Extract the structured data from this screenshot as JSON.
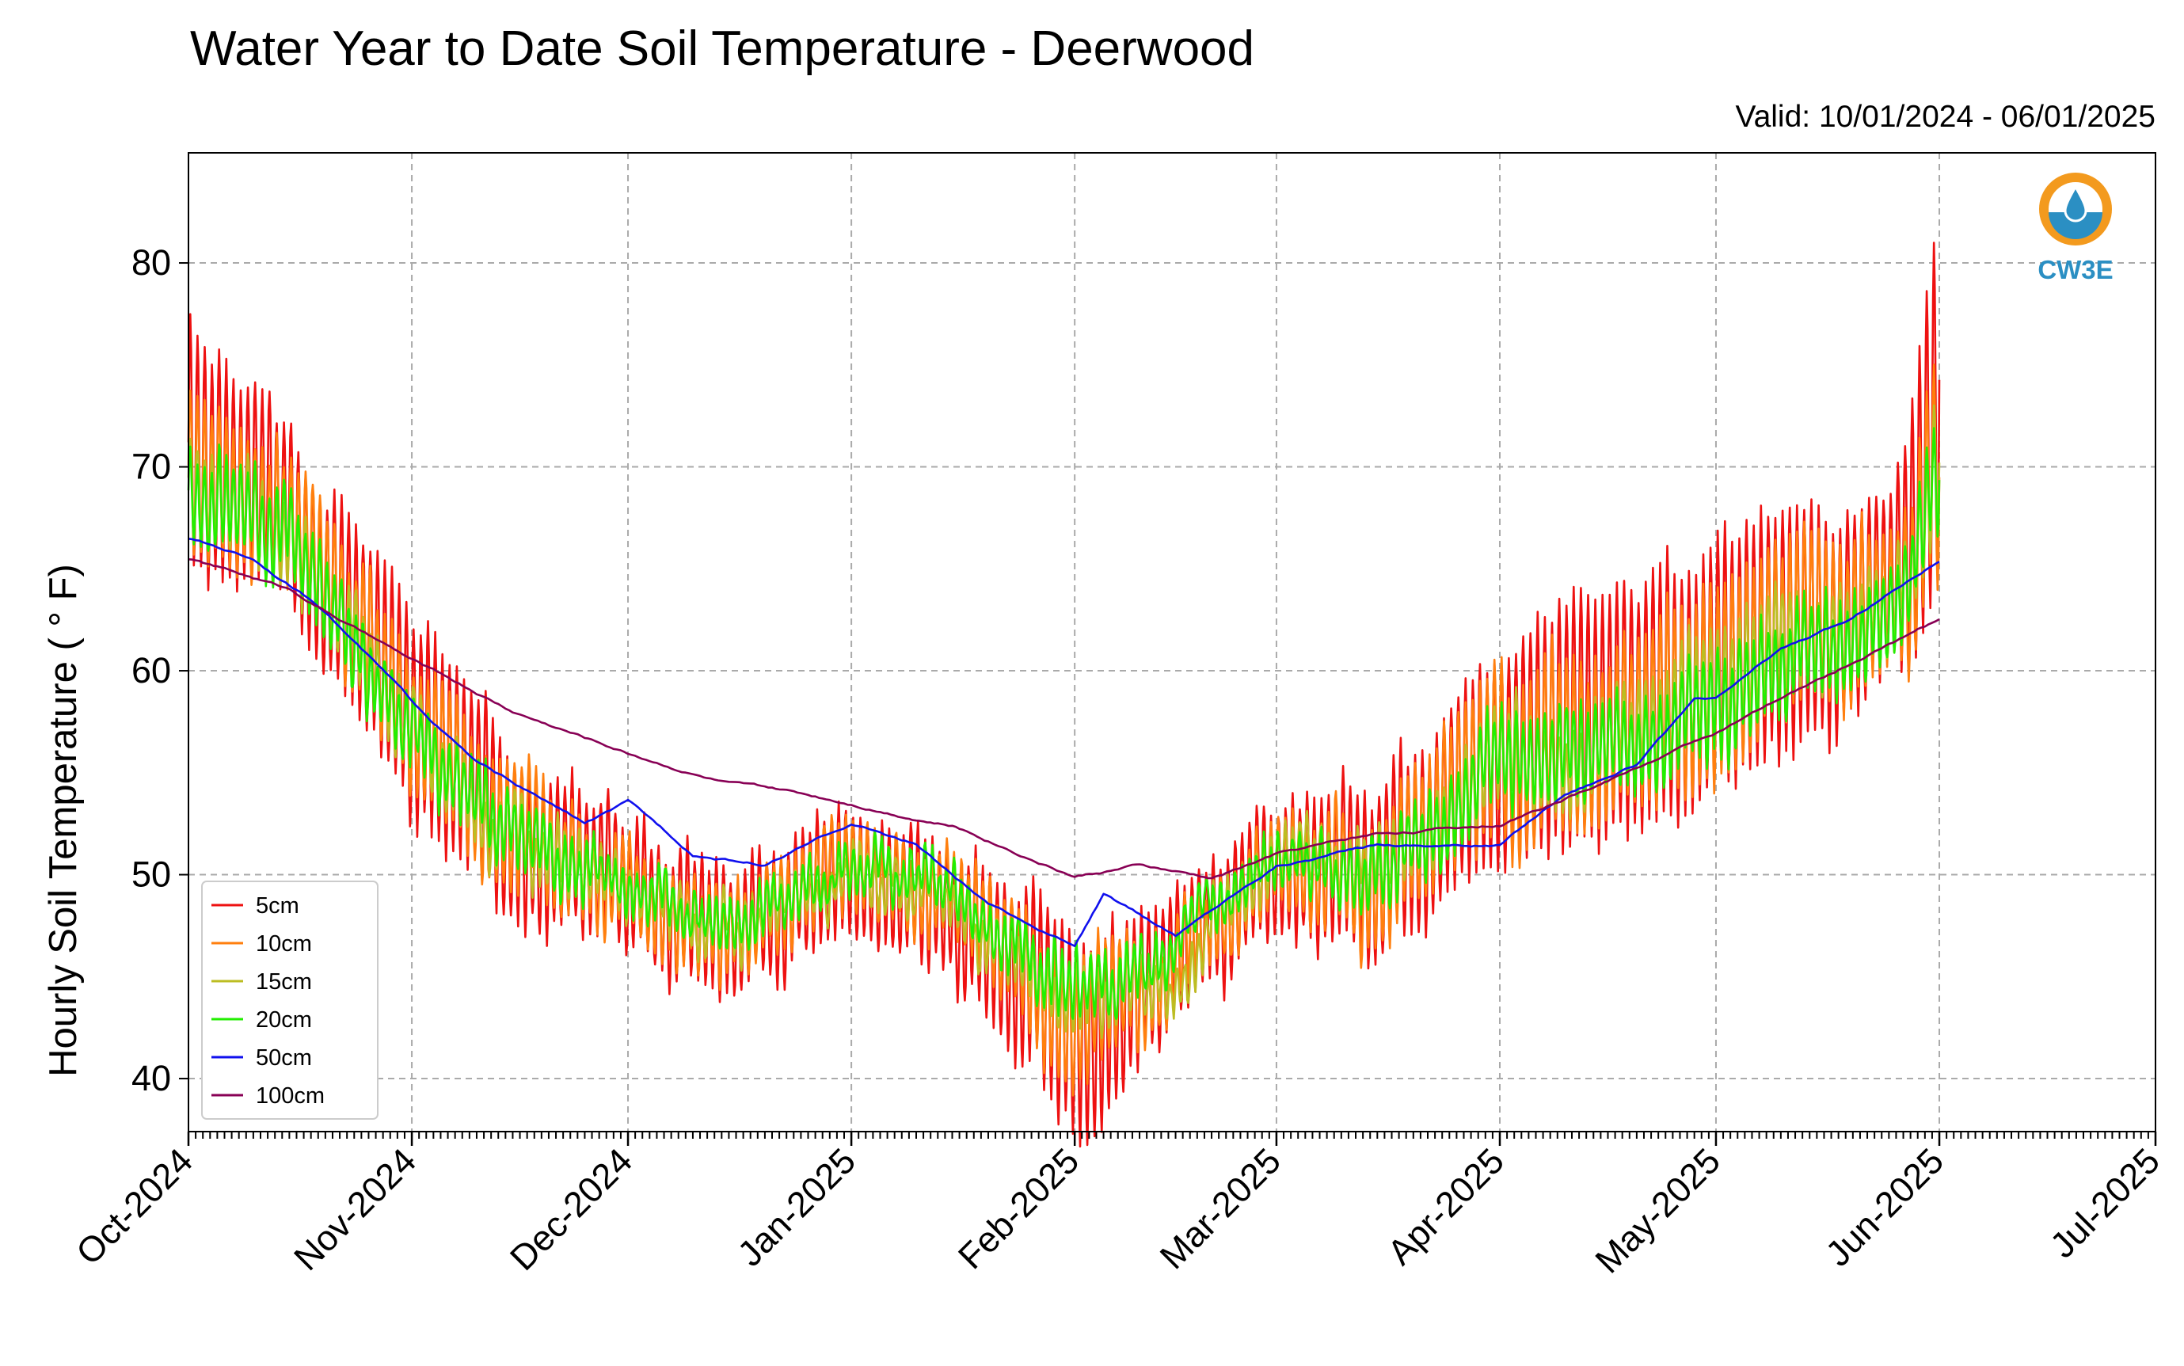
{
  "chart_data": {
    "type": "line",
    "title": "Water Year to Date Soil Temperature - Deerwood",
    "subtitle": "Valid: 10/01/2024 - 06/01/2025",
    "ylabel": "Hourly Soil Temperature ( ° F)",
    "xlabel": "",
    "ylim": [
      37.4,
      85.4
    ],
    "xlim": [
      "2024-10-01",
      "2025-07-01"
    ],
    "yticks": [
      40,
      50,
      60,
      70,
      80
    ],
    "xtick_labels": [
      "Oct-2024",
      "Nov-2024",
      "Dec-2024",
      "Jan-2025",
      "Feb-2025",
      "Mar-2025",
      "Apr-2025",
      "May-2025",
      "Jun-2025",
      "Jul-2025"
    ],
    "xtick_dates": [
      "2024-10-01",
      "2024-11-01",
      "2024-12-01",
      "2025-01-01",
      "2025-02-01",
      "2025-03-01",
      "2025-04-01",
      "2025-05-01",
      "2025-06-01",
      "2025-07-01"
    ],
    "grid": true,
    "legend_position": "lower-left",
    "logo_text": "CW3E",
    "series": [
      {
        "name": "5cm",
        "color": "#ee1111",
        "daily_amplitude_f": [
          6,
          4,
          5,
          4,
          3,
          3,
          3,
          3,
          5,
          3,
          3,
          4,
          5,
          6,
          6,
          6,
          6,
          5,
          4,
          6,
          9,
          9
        ],
        "x": [
          "2024-10-01",
          "2024-10-15",
          "2024-11-01",
          "2024-11-15",
          "2024-12-01",
          "2024-12-15",
          "2025-01-01",
          "2025-01-15",
          "2025-02-01",
          "2025-02-15",
          "2025-03-01",
          "2025-03-15",
          "2025-04-01",
          "2025-04-10",
          "2025-04-20",
          "2025-05-01",
          "2025-05-10",
          "2025-05-20",
          "2025-05-25",
          "2025-05-28",
          "2025-05-31",
          "2025-06-01"
        ],
        "y": [
          71,
          68,
          58,
          52,
          49,
          47,
          50,
          48,
          42,
          45,
          51,
          50,
          56,
          57,
          58,
          60,
          62,
          63,
          64,
          66,
          72,
          74
        ]
      },
      {
        "name": "10cm",
        "color": "#ff7f0e",
        "daily_amplitude_f": [
          4,
          3,
          3,
          3,
          2,
          2,
          2,
          2,
          3,
          2,
          2,
          3,
          4,
          4,
          4,
          5,
          4,
          4,
          3,
          4,
          5,
          6
        ],
        "x": [
          "2024-10-01",
          "2024-10-15",
          "2024-11-01",
          "2024-11-15",
          "2024-12-01",
          "2024-12-15",
          "2025-01-01",
          "2025-01-15",
          "2025-02-01",
          "2025-02-15",
          "2025-03-01",
          "2025-03-15",
          "2025-04-01",
          "2025-04-10",
          "2025-04-20",
          "2025-05-01",
          "2025-05-10",
          "2025-05-20",
          "2025-05-25",
          "2025-05-28",
          "2025-05-31",
          "2025-06-01"
        ],
        "y": [
          70,
          67.5,
          57.5,
          52,
          49,
          47.5,
          50.5,
          48.5,
          43,
          45.5,
          51,
          50,
          56,
          56.5,
          57.5,
          59.5,
          61.5,
          62.5,
          63.5,
          65,
          70,
          71
        ]
      },
      {
        "name": "15cm",
        "color": "#bcbd22",
        "daily_amplitude_f": [
          2,
          2,
          1.5,
          1.5,
          1,
          1,
          1,
          1,
          1.5,
          1,
          1,
          1.5,
          2,
          2,
          2,
          3,
          2,
          2,
          2,
          2,
          3,
          3
        ],
        "x": [
          "2024-10-01",
          "2024-10-15",
          "2024-11-01",
          "2024-11-15",
          "2024-12-01",
          "2024-12-15",
          "2025-01-01",
          "2025-01-15",
          "2025-02-01",
          "2025-02-15",
          "2025-03-01",
          "2025-03-15",
          "2025-04-01",
          "2025-04-10",
          "2025-04-20",
          "2025-05-01",
          "2025-05-10",
          "2025-05-20",
          "2025-05-25",
          "2025-05-28",
          "2025-05-31",
          "2025-06-01"
        ],
        "y": [
          69.5,
          67,
          57,
          52,
          49,
          47.5,
          50.5,
          48.5,
          43.5,
          45.5,
          51,
          50,
          55.5,
          56,
          57,
          59,
          61,
          62,
          63,
          64.5,
          69,
          70
        ]
      },
      {
        "name": "20cm",
        "color": "#22ee00",
        "daily_amplitude_f": [
          2,
          2,
          1.5,
          1.5,
          1,
          1,
          1,
          1,
          1.5,
          1,
          1,
          1.5,
          2,
          2,
          2,
          2.5,
          2,
          2,
          2,
          2,
          2.5,
          2.5
        ],
        "x": [
          "2024-10-01",
          "2024-10-15",
          "2024-11-01",
          "2024-11-15",
          "2024-12-01",
          "2024-12-15",
          "2025-01-01",
          "2025-01-15",
          "2025-02-01",
          "2025-02-15",
          "2025-03-01",
          "2025-03-15",
          "2025-04-01",
          "2025-04-10",
          "2025-04-20",
          "2025-05-01",
          "2025-05-10",
          "2025-05-20",
          "2025-05-25",
          "2025-05-28",
          "2025-05-31",
          "2025-06-01"
        ],
        "y": [
          69,
          66.5,
          56.5,
          52,
          49,
          47.5,
          50.5,
          49,
          44,
          46,
          51,
          50,
          55.5,
          56,
          56.5,
          58.5,
          60.5,
          61.5,
          62.5,
          64,
          68.5,
          69.5
        ]
      },
      {
        "name": "50cm",
        "color": "#1010ee",
        "x": [
          "2024-10-01",
          "2024-10-10",
          "2024-10-20",
          "2024-11-01",
          "2024-11-10",
          "2024-11-20",
          "2024-11-25",
          "2024-12-01",
          "2024-12-10",
          "2024-12-20",
          "2025-01-01",
          "2025-01-10",
          "2025-01-20",
          "2025-02-01",
          "2025-02-05",
          "2025-02-15",
          "2025-03-01",
          "2025-03-15",
          "2025-04-01",
          "2025-04-10",
          "2025-04-20",
          "2025-04-28",
          "2025-05-01",
          "2025-05-10",
          "2025-05-20",
          "2025-06-01"
        ],
        "y": [
          66.5,
          65.5,
          63,
          58.5,
          55.5,
          53.5,
          52.5,
          53.5,
          51,
          50.5,
          52.5,
          51.5,
          48.5,
          46.5,
          49,
          47,
          50.5,
          51.5,
          51.5,
          54,
          55.5,
          58.5,
          58.5,
          61,
          62.5,
          65.5
        ]
      },
      {
        "name": "100cm",
        "color": "#880055",
        "x": [
          "2024-10-01",
          "2024-10-15",
          "2024-11-01",
          "2024-11-15",
          "2024-12-01",
          "2024-12-15",
          "2025-01-01",
          "2025-01-15",
          "2025-02-01",
          "2025-02-10",
          "2025-02-20",
          "2025-03-01",
          "2025-03-15",
          "2025-04-01",
          "2025-04-15",
          "2025-05-01",
          "2025-05-15",
          "2025-06-01"
        ],
        "y": [
          65.5,
          64,
          60.5,
          58,
          56,
          54.5,
          53.5,
          52.5,
          50,
          50.5,
          49.8,
          51,
          52,
          52.5,
          54.5,
          57,
          59.5,
          62.5
        ]
      }
    ]
  }
}
